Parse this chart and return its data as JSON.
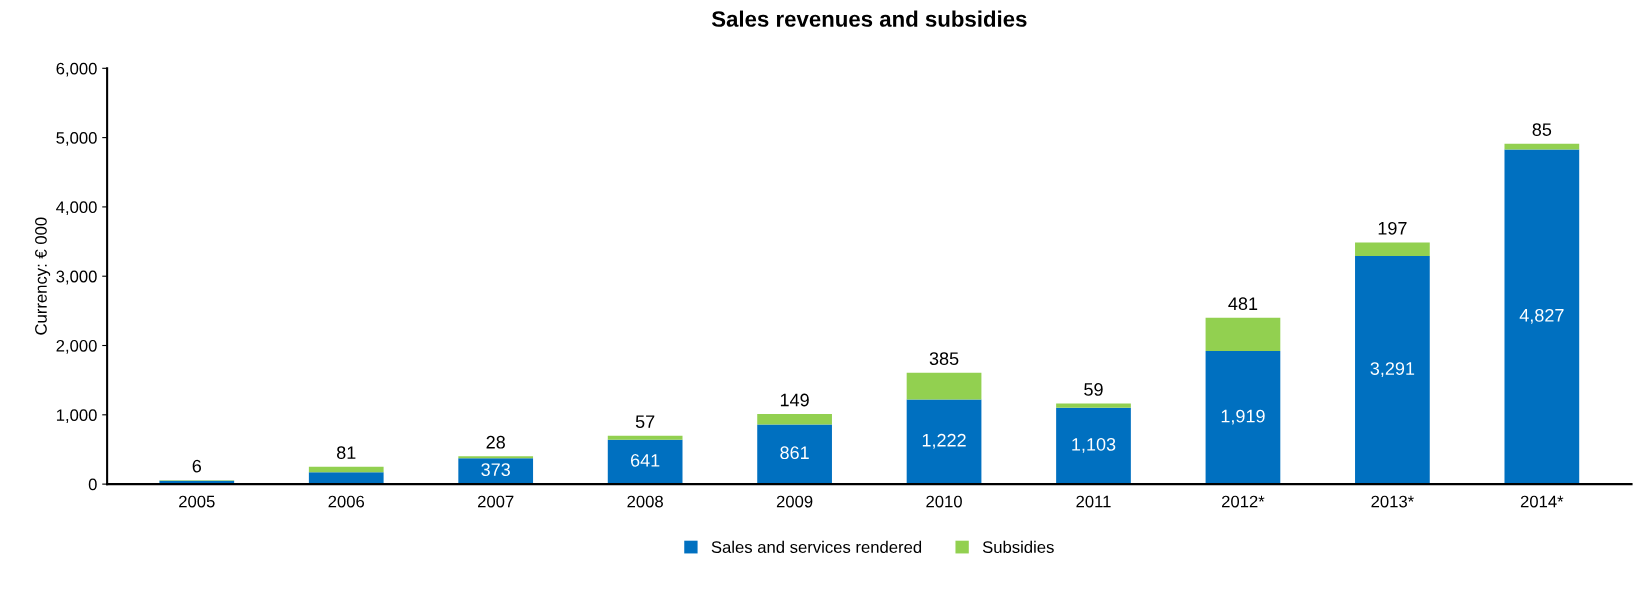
{
  "chart_data": {
    "type": "bar",
    "title": "Sales revenues and subsidies",
    "ylabel": "Currency: € 000",
    "stacked": true,
    "legend": "bottom",
    "grid": false,
    "categories": [
      "2005",
      "2006",
      "2007",
      "2008",
      "2009",
      "2010",
      "2011",
      "2012*",
      "2013*",
      "2014*"
    ],
    "ylim": [
      0,
      6000
    ],
    "yticks": [
      {
        "value": 0,
        "label": "0"
      },
      {
        "value": 1000,
        "label": "1,000"
      },
      {
        "value": 2000,
        "label": "2,000"
      },
      {
        "value": 3000,
        "label": "3,000"
      },
      {
        "value": 4000,
        "label": "4,000"
      },
      {
        "value": 5000,
        "label": "5,000"
      },
      {
        "value": 6000,
        "label": "6,000"
      }
    ],
    "series": [
      {
        "name": "Sales and services rendered",
        "color": "#0070c0",
        "values": [
          50,
          170,
          373,
          641,
          861,
          1222,
          1103,
          1919,
          3291,
          4827
        ],
        "value_labels": [
          null,
          null,
          "373",
          "641",
          "861",
          "1,222",
          "1,103",
          "1,919",
          "3,291",
          "4,827"
        ]
      },
      {
        "name": "Subsidies",
        "color": "#92d050",
        "values": [
          6,
          81,
          28,
          57,
          149,
          385,
          59,
          481,
          197,
          85
        ],
        "value_labels": [
          "6",
          "81",
          "28",
          "57",
          "149",
          "385",
          "59",
          "481",
          "197",
          "85"
        ]
      }
    ]
  }
}
